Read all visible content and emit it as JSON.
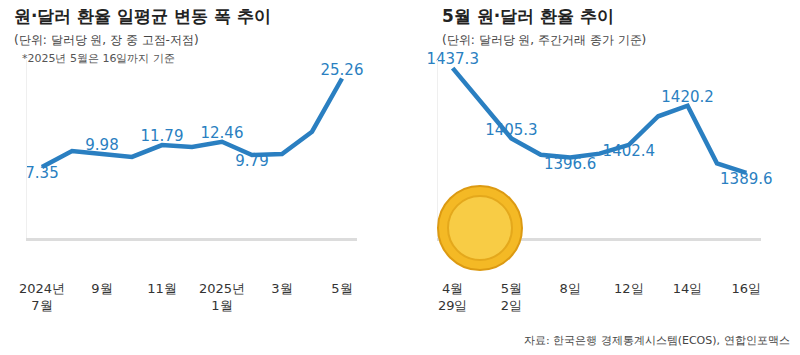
{
  "chart_data": [
    {
      "type": "line",
      "title": "원·달러 환율 일평균 변동 폭 추이",
      "subtitle": "(단위: 달러당 원, 장 중 고점-저점)",
      "note": "*2025년 5월은 16일까지 기준",
      "categories": [
        "2024년 7월",
        null,
        "9월",
        null,
        "11월",
        null,
        "2025년 1월",
        null,
        "3월",
        null,
        "5월"
      ],
      "values": [
        7.35,
        10.6,
        9.98,
        9.4,
        11.79,
        11.4,
        12.46,
        9.79,
        10.0,
        14.5,
        25.26
      ],
      "value_labels": [
        "7.35",
        null,
        "9.98",
        null,
        "11.79",
        null,
        "12.46",
        "9.79",
        null,
        null,
        "25.26"
      ],
      "data_labels": true,
      "color": "#2a7fc1",
      "line_style": "solid",
      "marker": "none",
      "grid": false,
      "tick_labels": "x",
      "ylim": [
        -7,
        29
      ],
      "yticks": []
    },
    {
      "type": "line",
      "title": "5월 원·달러 환율 추이",
      "subtitle": "(단위: 달러당 원, 주간거래 종가 기준)",
      "categories": [
        "4월 29일",
        null,
        "5월 2일",
        null,
        "8일",
        null,
        "12일",
        null,
        "14일",
        null,
        "16일"
      ],
      "values": [
        1437.3,
        1421.1,
        1405.3,
        1397.9,
        1396.6,
        1398.4,
        1402.4,
        1415.4,
        1420.2,
        1394.0,
        1389.6
      ],
      "value_labels": [
        "1437.3",
        null,
        "1405.3",
        null,
        "1396.6",
        null,
        "1402.4",
        null,
        "1420.2",
        null,
        "1389.6"
      ],
      "data_labels": true,
      "color": "#2a7fc1",
      "line_style": "solid",
      "marker": "none",
      "grid": false,
      "tick_labels": "x",
      "ylim": [
        1360,
        1441
      ],
      "yticks": []
    }
  ],
  "source": "자료: 한국은행 경제통계시스템(ECOS), 연합인포맥스"
}
